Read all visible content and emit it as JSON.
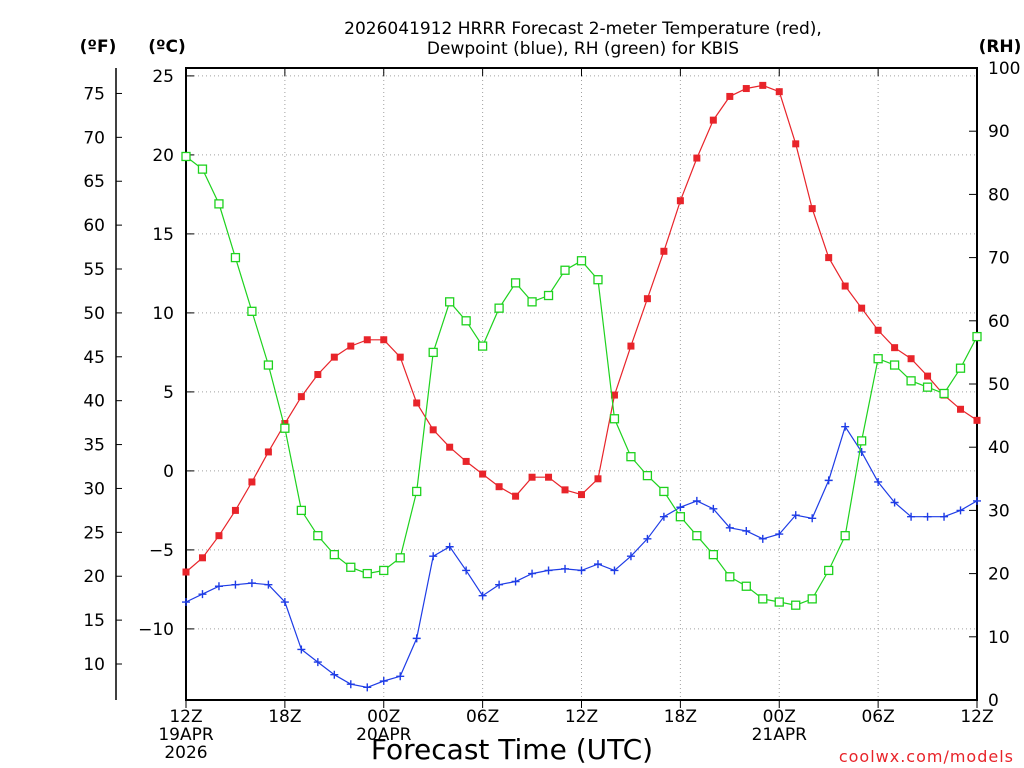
{
  "chart_data": {
    "type": "line",
    "title": [
      "2026041912 HRRR Forecast 2-meter Temperature (red),",
      "Dewpoint (blue), RH (green) for KBIS"
    ],
    "xlabel": "Forecast Time (UTC)",
    "credit": "coolwx.com/models",
    "units": {
      "fahrenheit": "(ºF)",
      "celsius": "(ºC)",
      "rh": "(RH)"
    },
    "x_ticks": [
      {
        "hour": 0,
        "lines": [
          "12Z",
          "19APR",
          "2026"
        ]
      },
      {
        "hour": 6,
        "lines": [
          "18Z"
        ]
      },
      {
        "hour": 12,
        "lines": [
          "00Z",
          "20APR"
        ]
      },
      {
        "hour": 18,
        "lines": [
          "06Z"
        ]
      },
      {
        "hour": 24,
        "lines": [
          "12Z"
        ]
      },
      {
        "hour": 30,
        "lines": [
          "18Z"
        ]
      },
      {
        "hour": 36,
        "lines": [
          "00Z",
          "21APR"
        ]
      },
      {
        "hour": 42,
        "lines": [
          "06Z"
        ]
      },
      {
        "hour": 48,
        "lines": [
          "12Z"
        ]
      }
    ],
    "xlim": [
      0,
      48
    ],
    "ylim_celsius": [
      -14.5,
      25.5
    ],
    "celsius_ticks": [
      -10,
      -5,
      0,
      5,
      10,
      15,
      20,
      25
    ],
    "fahrenheit_ticks": [
      10,
      15,
      20,
      25,
      30,
      35,
      40,
      45,
      50,
      55,
      60,
      65,
      70,
      75
    ],
    "ylim_rh": [
      0,
      100
    ],
    "rh_ticks": [
      0,
      10,
      20,
      30,
      40,
      50,
      60,
      70,
      80,
      90,
      100
    ],
    "grid": true,
    "x": [
      0,
      1,
      2,
      3,
      4,
      5,
      6,
      7,
      8,
      9,
      10,
      11,
      12,
      13,
      14,
      15,
      16,
      17,
      18,
      19,
      20,
      21,
      22,
      23,
      24,
      25,
      26,
      27,
      28,
      29,
      30,
      31,
      32,
      33,
      34,
      35,
      36,
      37,
      38,
      39,
      40,
      41,
      42,
      43,
      44,
      45,
      46,
      47,
      48
    ],
    "series": [
      {
        "name": "Temperature",
        "color": "#e8242a",
        "axis": "celsius",
        "marker": "filled-square",
        "values": [
          -6.4,
          -5.5,
          -4.1,
          -2.5,
          -0.7,
          1.2,
          3.0,
          4.7,
          6.1,
          7.2,
          7.9,
          8.3,
          8.3,
          7.2,
          4.3,
          2.6,
          1.5,
          0.6,
          -0.2,
          -1.0,
          -1.6,
          -0.4,
          -0.4,
          -1.2,
          -1.5,
          -0.5,
          4.8,
          7.9,
          10.9,
          13.9,
          17.1,
          19.8,
          22.2,
          23.7,
          24.2,
          24.4,
          24.0,
          20.7,
          16.6,
          13.5,
          11.7,
          10.3,
          8.9,
          7.8,
          7.1,
          6.0,
          4.8,
          3.9,
          3.2
        ]
      },
      {
        "name": "Dewpoint",
        "color": "#1e3ce6",
        "axis": "celsius",
        "marker": "plus",
        "values": [
          -8.3,
          -7.8,
          -7.3,
          -7.2,
          -7.1,
          -7.2,
          -8.3,
          -11.3,
          -12.1,
          -12.9,
          -13.5,
          -13.7,
          -13.3,
          -13.0,
          -10.6,
          -5.4,
          -4.8,
          -6.3,
          -7.9,
          -7.2,
          -7.0,
          -6.5,
          -6.3,
          -6.2,
          -6.3,
          -5.9,
          -6.3,
          -5.4,
          -4.3,
          -2.9,
          -2.3,
          -1.9,
          -2.4,
          -3.6,
          -3.8,
          -4.3,
          -4.0,
          -2.8,
          -3.0,
          -0.6,
          2.8,
          1.2,
          -0.7,
          -2.0,
          -2.9,
          -2.9,
          -2.9,
          -2.5,
          -1.9
        ]
      },
      {
        "name": "RH",
        "color": "#1ed21e",
        "axis": "rh",
        "marker": "open-square",
        "values": [
          86,
          84,
          78.5,
          70,
          61.5,
          53,
          43,
          30,
          26,
          23,
          21,
          20,
          20.5,
          22.5,
          33,
          55,
          63,
          60,
          56,
          62,
          66,
          63,
          64,
          68,
          69.5,
          66.5,
          44.5,
          38.5,
          35.5,
          33,
          29,
          26,
          23,
          19.5,
          18,
          16,
          15.5,
          15,
          16,
          20.5,
          26,
          41,
          54,
          53,
          50.5,
          49.5,
          48.5,
          52.5,
          57.5
        ]
      }
    ]
  }
}
